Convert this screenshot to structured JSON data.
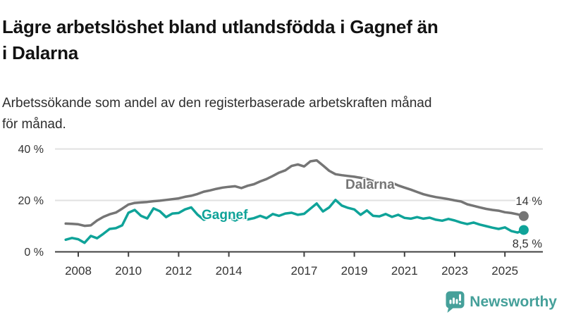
{
  "header": {
    "title_lines": [
      "Lägre arbetslöshet bland utlandsfödda i Gagnef än",
      "i Dalarna"
    ],
    "subtitle_lines": [
      "Arbetssökande som andel av den registerbaserade arbetskraften månad",
      "för månad."
    ]
  },
  "footer": {
    "brand": "Newsworthy",
    "brand_color": "#45a09a"
  },
  "chart_data": {
    "type": "line",
    "title": "Lägre arbetslöshet bland utlandsfödda i Gagnef än i Dalarna",
    "xlabel": "",
    "ylabel": "",
    "grid": true,
    "legend_position": "inline-labels",
    "xlim": [
      2007.3,
      2026.4
    ],
    "ylim": [
      0,
      40
    ],
    "x_start": 2007.5,
    "x_step_years": 0.25,
    "x_ticks": [
      2008,
      2010,
      2012,
      2014,
      2017,
      2019,
      2021,
      2023,
      2025
    ],
    "y_ticks": [
      {
        "value": 0,
        "label": "0 %"
      },
      {
        "value": 20,
        "label": "20 %"
      },
      {
        "value": 40,
        "label": "40 %"
      }
    ],
    "series": [
      {
        "name": "Dalarna",
        "color": "#757575",
        "end_label": "14 %",
        "values": [
          11.0,
          10.9,
          10.7,
          10.1,
          10.3,
          12.2,
          13.6,
          14.6,
          15.3,
          16.8,
          18.4,
          19.0,
          19.2,
          19.4,
          19.7,
          19.9,
          20.2,
          20.5,
          20.8,
          21.4,
          21.8,
          22.5,
          23.4,
          23.9,
          24.5,
          25.0,
          25.3,
          25.5,
          24.8,
          25.7,
          26.3,
          27.4,
          28.3,
          29.5,
          30.8,
          31.7,
          33.4,
          34.0,
          33.2,
          35.2,
          35.6,
          33.6,
          31.5,
          30.2,
          29.8,
          29.5,
          29.2,
          28.8,
          28.3,
          27.5,
          26.8,
          26.4,
          26.9,
          25.8,
          25.0,
          24.2,
          23.3,
          22.4,
          21.8,
          21.3,
          20.9,
          20.5,
          20.0,
          19.6,
          18.5,
          17.9,
          17.3,
          16.7,
          16.3,
          16.0,
          15.4,
          15.1,
          14.6,
          13.9
        ]
      },
      {
        "name": "Gagnef",
        "color": "#0fa399",
        "end_label": "8,5 %",
        "values": [
          4.7,
          5.4,
          4.9,
          3.5,
          6.2,
          5.3,
          7.0,
          8.9,
          9.2,
          10.3,
          15.2,
          16.3,
          14.0,
          13.0,
          16.9,
          15.8,
          13.5,
          14.9,
          15.1,
          16.5,
          17.3,
          14.5,
          12.5,
          13.3,
          13.9,
          12.1,
          13.2,
          12.2,
          13.4,
          12.6,
          13.1,
          14.0,
          13.1,
          14.7,
          14.0,
          14.9,
          15.2,
          14.4,
          14.8,
          16.8,
          18.8,
          15.7,
          17.3,
          20.2,
          18.0,
          17.1,
          16.5,
          14.4,
          16.1,
          14.0,
          13.8,
          14.7,
          13.6,
          14.4,
          13.2,
          12.9,
          13.5,
          12.9,
          13.3,
          12.5,
          12.1,
          12.8,
          12.2,
          11.4,
          10.8,
          11.4,
          10.6,
          10.0,
          9.4,
          8.9,
          9.5,
          8.1,
          7.5,
          8.5
        ]
      }
    ],
    "colors": {
      "grid": "#e0e0e0",
      "axis": "#404040",
      "tick_text": "#333333",
      "end_label_text": "#333333"
    }
  }
}
